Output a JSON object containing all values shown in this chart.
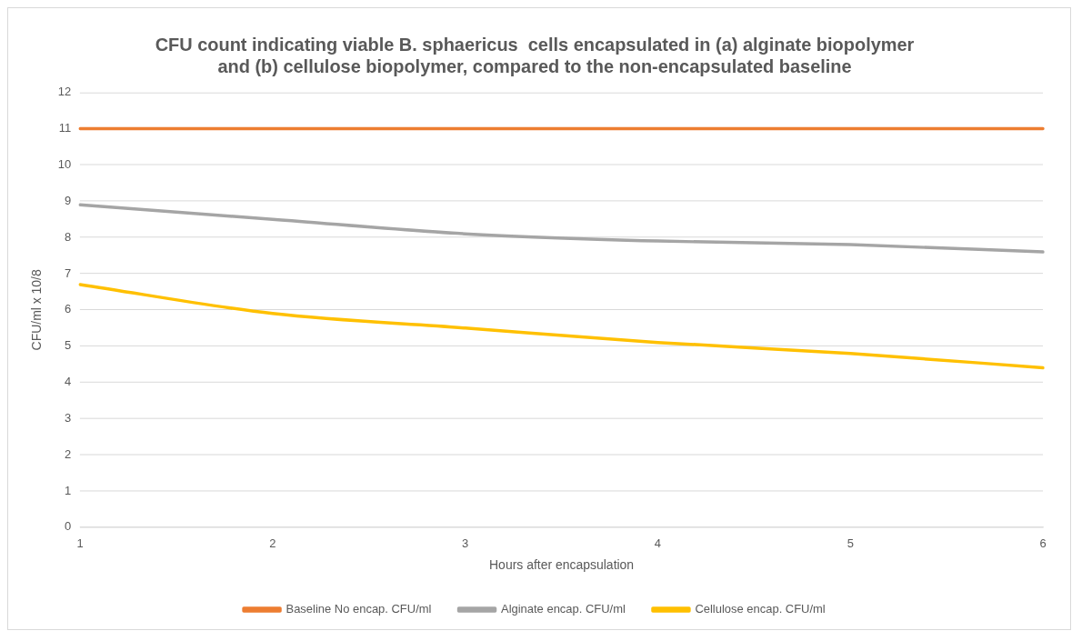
{
  "chart_data": {
    "type": "line",
    "title": "CFU count indicating viable B. sphaericus  cells encapsulated in (a) alginate biopolymer and (b) cellulose biopolymer, compared to the non-encapsulated baseline",
    "xlabel": "Hours after encapsulation",
    "ylabel": "CFU/ml x 10/8",
    "categories": [
      "1",
      "2",
      "3",
      "4",
      "5",
      "6"
    ],
    "series": [
      {
        "name": "Baseline No encap. CFU/ml",
        "color": "#ed7d31",
        "values": [
          11,
          11,
          11,
          11,
          11,
          11
        ]
      },
      {
        "name": "Alginate encap. CFU/ml",
        "color": "#a5a5a5",
        "values": [
          8.9,
          8.5,
          8.1,
          7.9,
          7.8,
          7.6
        ]
      },
      {
        "name": "Cellulose encap. CFU/ml",
        "color": "#ffc000",
        "values": [
          6.7,
          5.9,
          5.5,
          5.1,
          4.8,
          4.4
        ]
      }
    ],
    "ylim": [
      0,
      12
    ],
    "yticks": [
      0,
      1,
      2,
      3,
      4,
      5,
      6,
      7,
      8,
      9,
      10,
      11,
      12
    ],
    "grid": "y",
    "legend": "bottom",
    "marker": "none",
    "line_style": "solid"
  }
}
